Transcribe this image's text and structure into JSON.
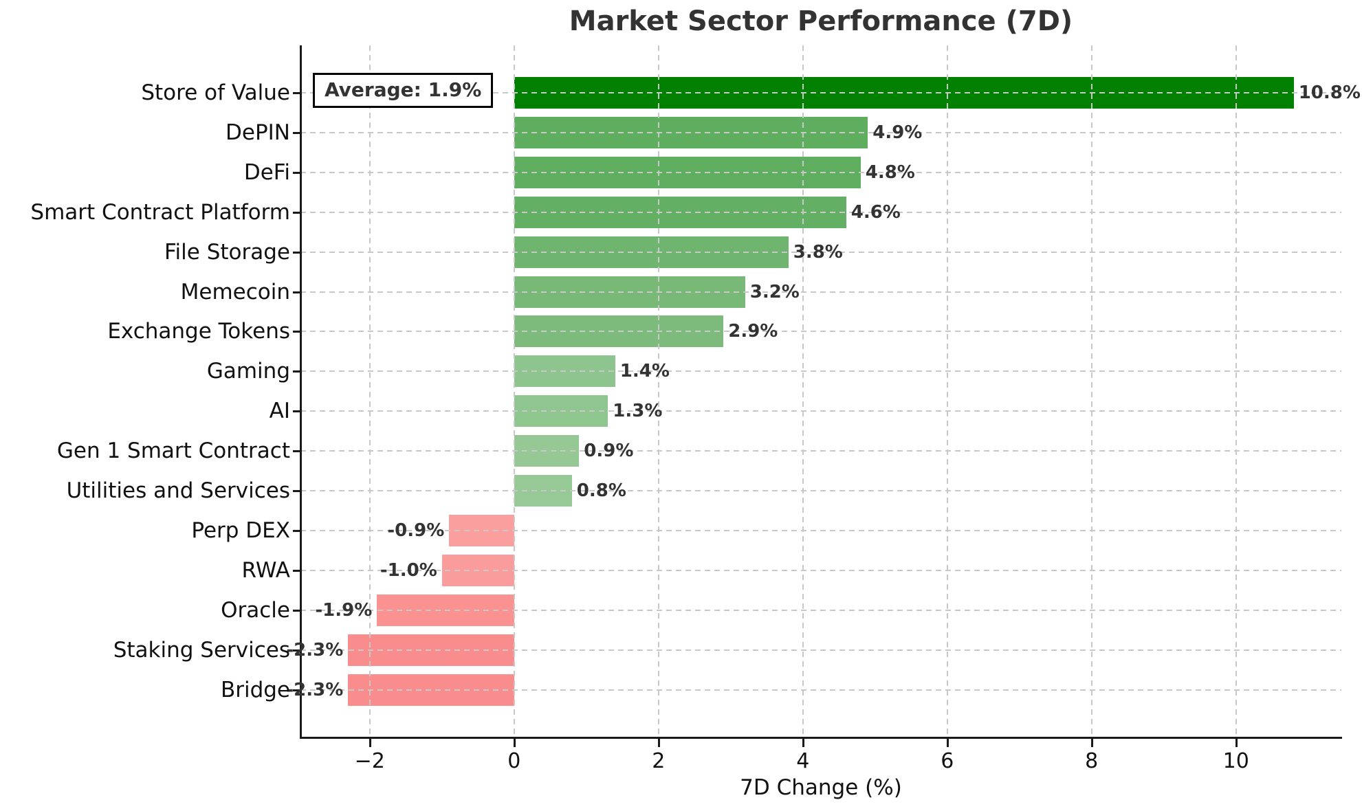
{
  "title": "Market Sector Performance (7D)",
  "annotation": {
    "label": "Average: 1.9%",
    "average_value": 1.9
  },
  "chart_data": {
    "type": "bar",
    "orientation": "horizontal",
    "title": "Market Sector Performance (7D)",
    "xlabel": "7D Change (%)",
    "ylabel": "",
    "categories": [
      "Store of Value",
      "DePIN",
      "DeFi",
      "Smart Contract Platform",
      "File Storage",
      "Memecoin",
      "Exchange Tokens",
      "Gaming",
      "AI",
      "Gen 1 Smart Contract",
      "Utilities and Services",
      "Perp DEX",
      "RWA",
      "Oracle",
      "Staking Services",
      "Bridge"
    ],
    "values": [
      10.8,
      4.9,
      4.8,
      4.6,
      3.8,
      3.2,
      2.9,
      1.4,
      1.3,
      0.9,
      0.8,
      -0.9,
      -1.0,
      -1.9,
      -2.3,
      -2.3
    ],
    "value_labels": [
      "10.8%",
      "4.9%",
      "4.8%",
      "4.6%",
      "3.8%",
      "3.2%",
      "2.9%",
      "1.4%",
      "1.3%",
      "0.9%",
      "0.8%",
      "-0.9%",
      "-1.0%",
      "-1.9%",
      "-2.3%",
      "-2.3%"
    ],
    "bar_colors": [
      "#018001",
      "#5fad5f",
      "#60ae60",
      "#63af63",
      "#6fb56f",
      "#78b978",
      "#7cbb7c",
      "#8ec58e",
      "#8fc58f",
      "#95c895",
      "#96c996",
      "#fb9e9e",
      "#fb9c9c",
      "#fa9292",
      "#f98c8c",
      "#f98c8c"
    ],
    "xticks": [
      -2,
      0,
      2,
      4,
      6,
      8,
      10
    ],
    "xtick_labels": [
      "−2",
      "0",
      "2",
      "4",
      "6",
      "8",
      "10"
    ],
    "xlim": [
      -2.96,
      11.46
    ],
    "grid": "dashed",
    "legend": "none",
    "annotation": "Average: 1.9%"
  },
  "colors": {
    "positive_max": "#018001",
    "negative_min": "#f98c8c",
    "grid": "#c8c8c8",
    "spine": "#1a1a1a",
    "text": "#111111",
    "title_text": "#333333",
    "background": "#ffffff"
  }
}
